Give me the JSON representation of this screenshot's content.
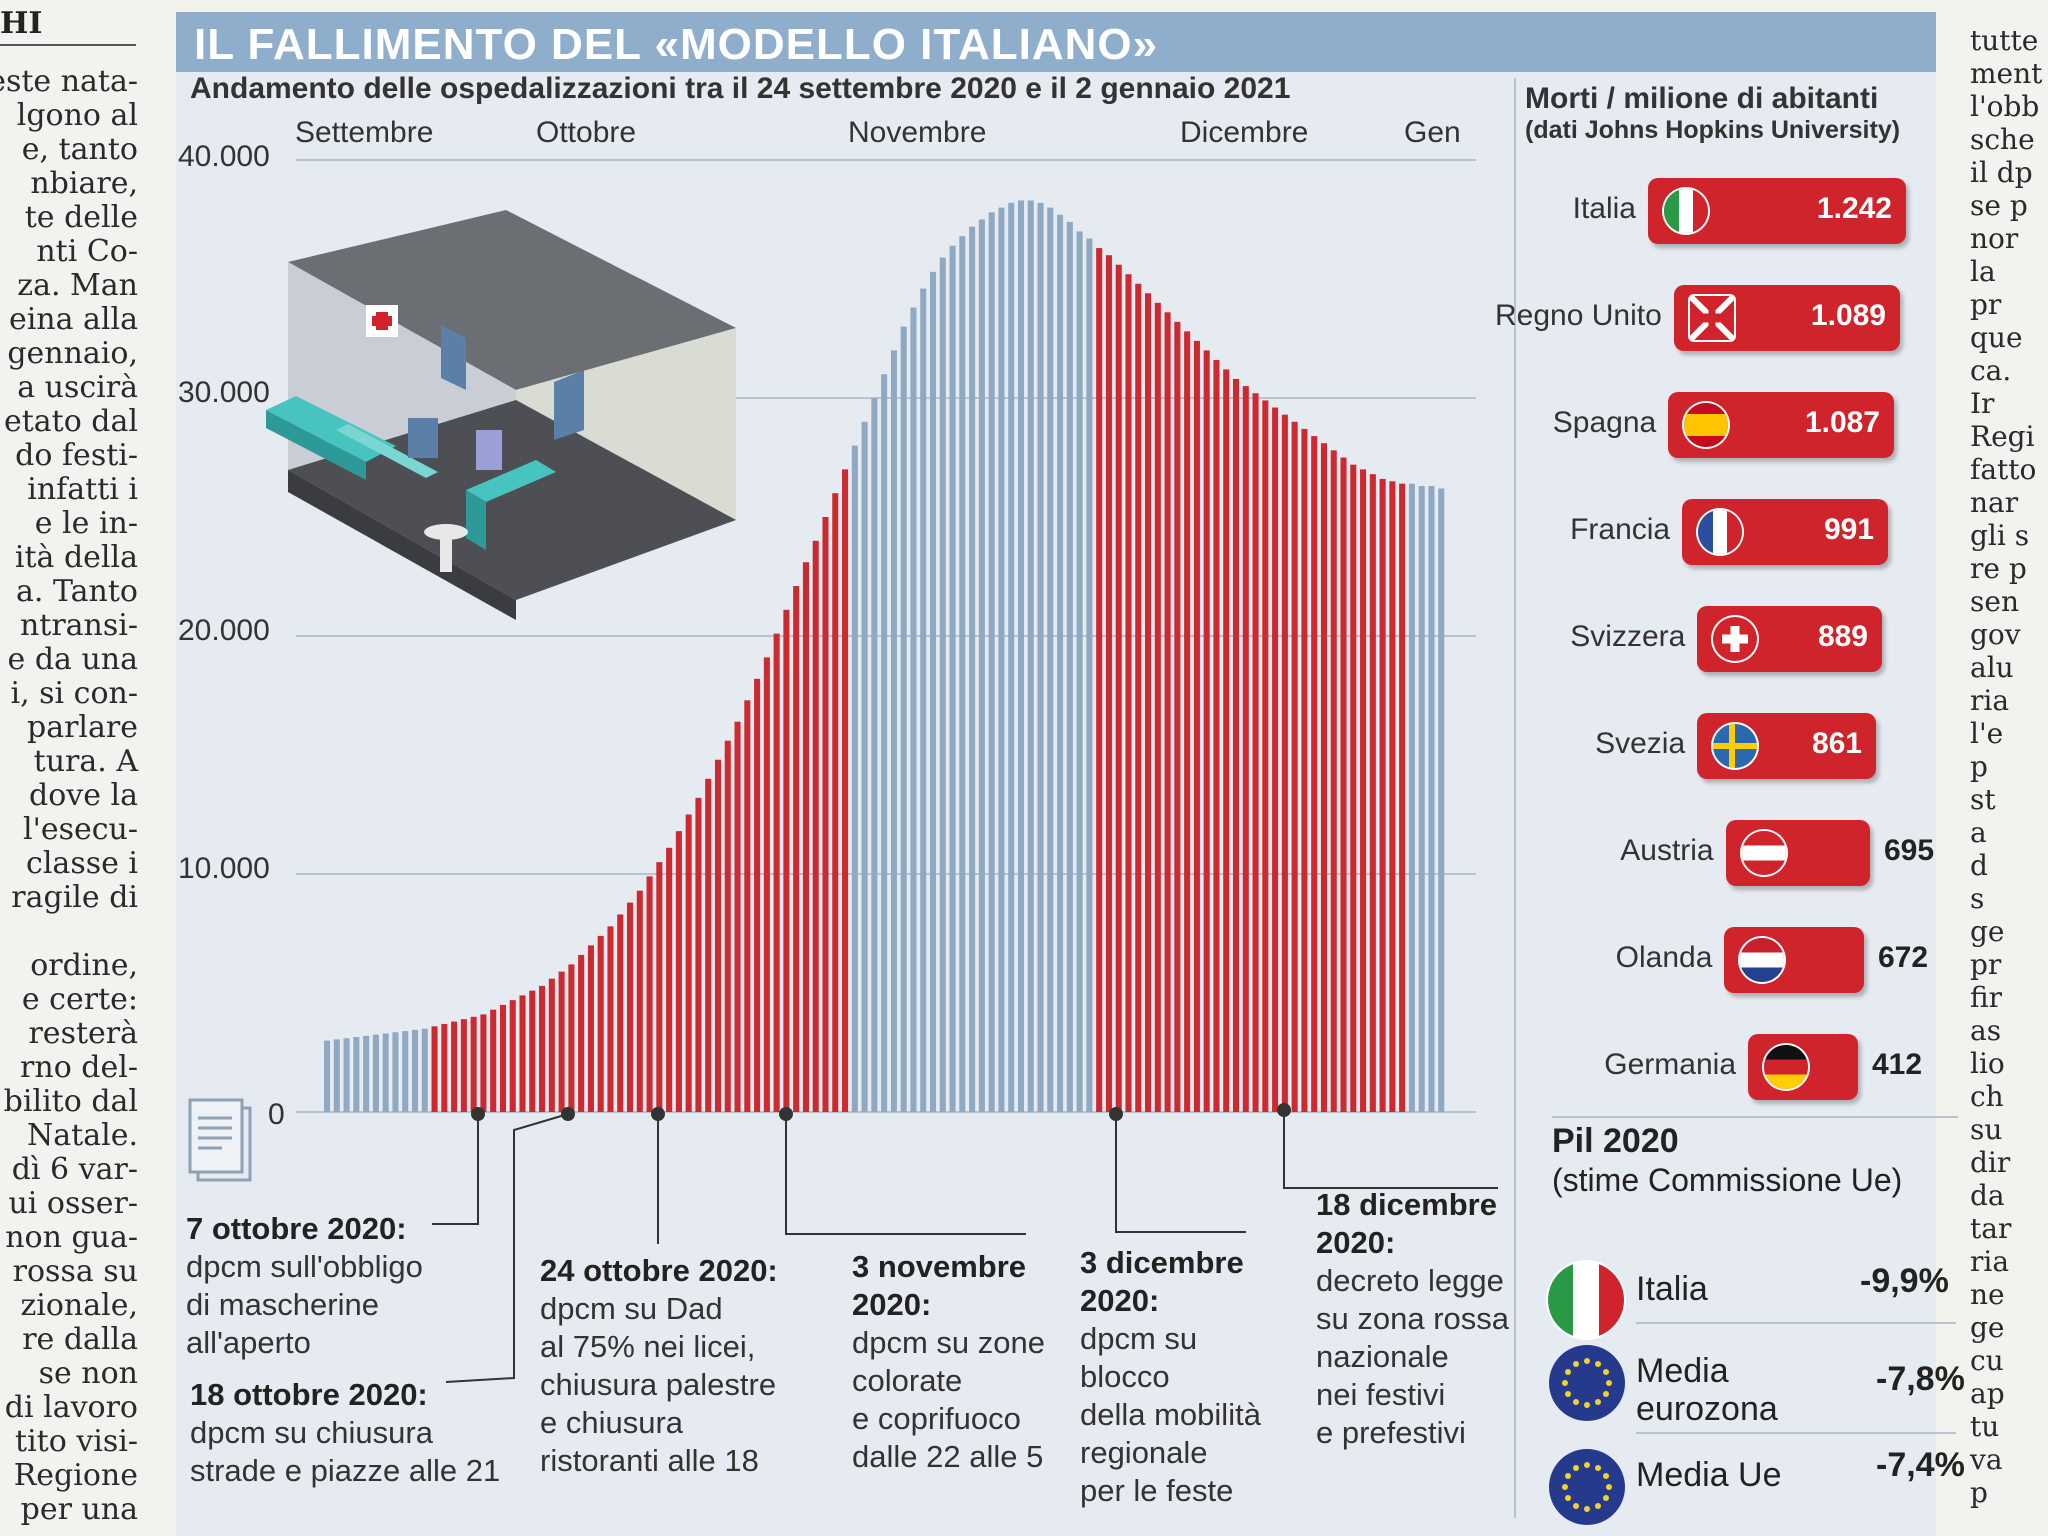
{
  "left_column": {
    "header": "HI",
    "lines": [
      "este nata-",
      "lgono al",
      "e, tanto",
      "nbiare,",
      "te delle",
      "nti Co-",
      "za. Man",
      "eina alla",
      "gennaio,",
      "a uscirà",
      "etato dal",
      "do festi-",
      "infatti i",
      "e le in-",
      "ità della",
      "a. Tanto",
      "ntransi-",
      "e da una",
      "i, si con-",
      "parlare",
      "tura. A",
      "dove la",
      "l'esecu-",
      "classe i",
      "ragile di",
      "",
      "ordine,",
      "e certe:",
      "resterà",
      "rno del-",
      "bilito dal",
      "Natale.",
      "dì 6 var-",
      "ui osser-",
      "non gua-",
      "rossa su",
      "zionale,",
      "re dalla",
      "se non",
      "di lavoro",
      "tito visi-",
      "Regione",
      "per una"
    ]
  },
  "right_column": {
    "lines": [
      "tutte",
      "ment",
      "l'obb",
      "sche",
      "il dp",
      "se p",
      "nor",
      "la",
      "pr",
      "que",
      "ca.",
      "Ir",
      "Regi",
      "fatto",
      "nar",
      "gli s",
      "re p",
      "sen",
      "gov",
      "alu",
      "ria",
      "l'e",
      "p",
      "st",
      "a",
      "d",
      "s",
      "ge",
      "pr",
      "fir",
      "as",
      "lio",
      "ch",
      "su",
      "dir",
      "da",
      "tar",
      "ria",
      "ne",
      "ge",
      "cu",
      "ap",
      "tu",
      "va",
      "p"
    ]
  },
  "header": {
    "title": "IL FALLIMENTO DEL «MODELLO ITALIANO»"
  },
  "chart_data": {
    "type": "bar",
    "title": "Andamento delle ospedalizzazioni tra il 24 settembre 2020 e il 2 gennaio 2021",
    "xlabel": "",
    "ylabel": "",
    "ylim": [
      0,
      40000
    ],
    "yticks": [
      "40.000",
      "30.000",
      "20.000",
      "10.000",
      "0"
    ],
    "ytick_values": [
      40000,
      30000,
      20000,
      10000,
      0
    ],
    "months": [
      "Settembre",
      "Ottobre",
      "Novembre",
      "Dicembre",
      "Gen"
    ],
    "start_date": "24 settembre 2020",
    "end_date": "2 gennaio 2021",
    "values": [
      3000,
      3050,
      3100,
      3150,
      3200,
      3250,
      3300,
      3350,
      3400,
      3450,
      3500,
      3600,
      3700,
      3800,
      3900,
      4000,
      4100,
      4300,
      4500,
      4700,
      4900,
      5100,
      5300,
      5600,
      5900,
      6200,
      6600,
      7000,
      7400,
      7800,
      8300,
      8800,
      9300,
      9900,
      10500,
      11100,
      11800,
      12500,
      13200,
      14000,
      14800,
      15600,
      16400,
      17300,
      18200,
      19100,
      20100,
      21100,
      22100,
      23100,
      24000,
      25000,
      26000,
      27000,
      28000,
      29000,
      30000,
      31000,
      32000,
      33000,
      33800,
      34600,
      35300,
      35900,
      36400,
      36800,
      37200,
      37500,
      37800,
      38000,
      38200,
      38300,
      38300,
      38200,
      38000,
      37700,
      37400,
      37000,
      36700,
      36300,
      36000,
      35600,
      35200,
      34800,
      34400,
      34000,
      33600,
      33200,
      32800,
      32400,
      32000,
      31600,
      31200,
      30800,
      30500,
      30200,
      29900,
      29600,
      29300,
      29000,
      28700,
      28400,
      28100,
      27800,
      27500,
      27200,
      27000,
      26800,
      26600,
      26500,
      26400,
      26400,
      26300,
      26300,
      26200
    ],
    "segments": [
      {
        "from": 0,
        "to": 10,
        "color": "#8fa9c2"
      },
      {
        "from": 11,
        "to": 53,
        "color": "#cc2a30"
      },
      {
        "from": 54,
        "to": 78,
        "color": "#8fa9c2"
      },
      {
        "from": 79,
        "to": 110,
        "color": "#cc2a30"
      },
      {
        "from": 111,
        "to": 114,
        "color": "#8fa9c2"
      }
    ]
  },
  "events": [
    {
      "date": "7 ottobre 2020:",
      "desc": [
        "dpcm sull'obbligo",
        "di mascherine",
        "all'aperto"
      ]
    },
    {
      "date": "18 ottobre 2020:",
      "desc": [
        "dpcm su chiusura",
        "strade e piazze alle 21"
      ]
    },
    {
      "date": "24 ottobre 2020:",
      "desc": [
        "dpcm su Dad",
        "al 75% nei licei,",
        "chiusura palestre",
        "e chiusura",
        "ristoranti alle 18"
      ]
    },
    {
      "date": "3 novembre 2020:",
      "desc": [
        "dpcm su zone",
        "colorate",
        "e coprifuoco",
        "dalle 22 alle 5"
      ]
    },
    {
      "date": "3 dicembre 2020:",
      "desc": [
        "dpcm su blocco",
        "della mobilità",
        "regionale",
        "per le feste"
      ]
    },
    {
      "date": "18 dicembre 2020:",
      "desc": [
        "decreto legge",
        "su zona rossa",
        "nazionale",
        "nei festivi",
        "e prefestivi"
      ]
    }
  ],
  "deaths": {
    "title": "Morti / milione di abitanti",
    "subtitle": "(dati Johns Hopkins University)",
    "items": [
      {
        "country": "Italia",
        "value": 1242,
        "label": "1.242",
        "flag": "italy-flag"
      },
      {
        "country": "Regno Unito",
        "value": 1089,
        "label": "1.089",
        "flag": "uk-flag"
      },
      {
        "country": "Spagna",
        "value": 1087,
        "label": "1.087",
        "flag": "spain-flag"
      },
      {
        "country": "Francia",
        "value": 991,
        "label": "991",
        "flag": "france-flag"
      },
      {
        "country": "Svizzera",
        "value": 889,
        "label": "889",
        "flag": "switzerland-flag"
      },
      {
        "country": "Svezia",
        "value": 861,
        "label": "861",
        "flag": "sweden-flag"
      },
      {
        "country": "Austria",
        "value": 695,
        "label": "695",
        "flag": "austria-flag"
      },
      {
        "country": "Olanda",
        "value": 672,
        "label": "672",
        "flag": "netherlands-flag"
      },
      {
        "country": "Germania",
        "value": 412,
        "label": "412",
        "flag": "germany-flag"
      }
    ]
  },
  "pil": {
    "title": "Pil 2020",
    "subtitle": "(stime Commissione Ue)",
    "items": [
      {
        "name": "Italia",
        "value": "-9,9%",
        "flag": "italy-flag"
      },
      {
        "name": "Media eurozona",
        "value": "-7,8%",
        "flag": "eu-flag"
      },
      {
        "name": "Media Ue",
        "value": "-7,4%",
        "flag": "eu-flag"
      }
    ]
  },
  "colors": {
    "red": "#cc2a30",
    "blue": "#8fa9c2",
    "title_bar": "#8faecb",
    "panel": "#e6ebf1"
  }
}
